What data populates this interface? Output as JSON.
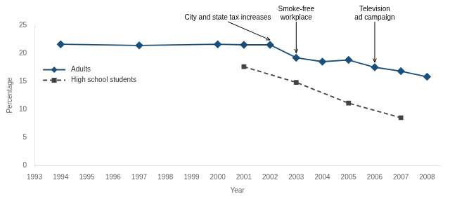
{
  "chart_data": {
    "type": "line",
    "xlabel": "Year",
    "ylabel": "Percentage",
    "xlim": [
      1993,
      2008.5
    ],
    "ylim": [
      0,
      25
    ],
    "xticks": [
      1993,
      1994,
      1995,
      1996,
      1997,
      1998,
      1999,
      2000,
      2001,
      2002,
      2003,
      2004,
      2005,
      2006,
      2007,
      2008
    ],
    "yticks": [
      0,
      5,
      10,
      15,
      20,
      25
    ],
    "grid": false,
    "legend": "upper left",
    "series": [
      {
        "name": "Adults",
        "color": "#1A4F7A",
        "marker": "diamond",
        "line_style": "solid",
        "x": [
          1994,
          1997,
          2000,
          2001,
          2002,
          2003,
          2004,
          2005,
          2006,
          2007,
          2008
        ],
        "values": [
          21.6,
          21.4,
          21.6,
          21.5,
          21.5,
          19.2,
          18.5,
          18.8,
          17.5,
          16.8,
          15.8
        ]
      },
      {
        "name": "High school students",
        "color": "#444444",
        "marker": "square",
        "line_style": "dashed",
        "x": [
          2001,
          2003,
          2005,
          2007
        ],
        "values": [
          17.6,
          14.8,
          11.1,
          8.5
        ]
      }
    ],
    "annotations": [
      {
        "text": "City and state tax increases",
        "x": 2002,
        "y": 21.5
      },
      {
        "text": "Smoke-free\nworkplace",
        "x": 2003,
        "y": 19.2
      },
      {
        "text": "Television\nad campaign",
        "x": 2006,
        "y": 17.5
      }
    ]
  }
}
